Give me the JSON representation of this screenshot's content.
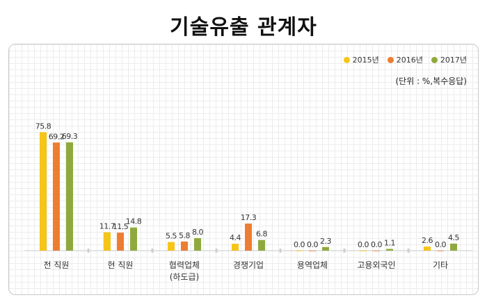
{
  "title": "기술유출 관계자",
  "unit_note": "(단위 : %,복수응답)",
  "colors": {
    "2015년": "#f5c518",
    "2016년": "#ed7d31",
    "2017년": "#8faa3c"
  },
  "chart_data": {
    "type": "bar",
    "categories": [
      "전 직원",
      "현 직원",
      "협력업체\n(하도급)",
      "경쟁기업",
      "용역업체",
      "고용외국인",
      "기타"
    ],
    "series": [
      {
        "name": "2015년",
        "values": [
          75.8,
          11.7,
          5.5,
          4.4,
          0.0,
          0.0,
          2.6
        ]
      },
      {
        "name": "2016년",
        "values": [
          69.2,
          11.5,
          5.8,
          17.3,
          0.0,
          0.0,
          0.0
        ]
      },
      {
        "name": "2017년",
        "values": [
          69.3,
          14.8,
          8.0,
          6.8,
          2.3,
          1.1,
          4.5
        ]
      }
    ],
    "ylim": [
      0,
      80
    ],
    "legend": "top-right",
    "grid": true
  }
}
